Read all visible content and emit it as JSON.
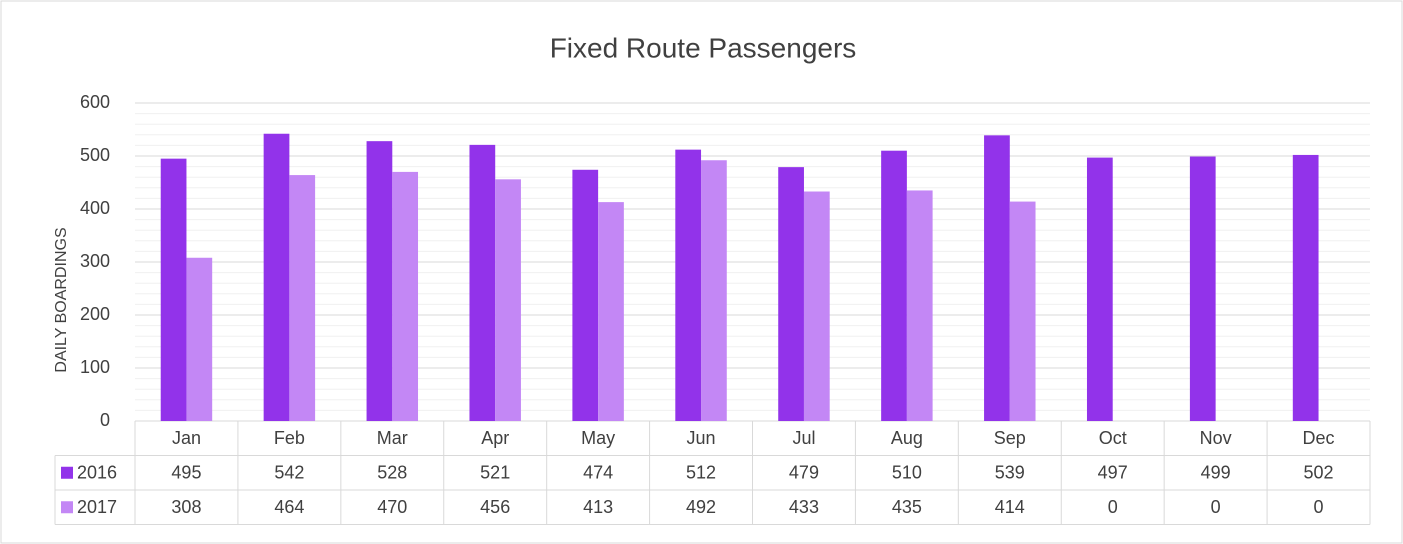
{
  "chart_data": {
    "type": "bar",
    "title": "Fixed Route Passengers",
    "y_label": "DAILY BOARDINGS",
    "categories": [
      "Jan",
      "Feb",
      "Mar",
      "Apr",
      "May",
      "Jun",
      "Jul",
      "Aug",
      "Sep",
      "Oct",
      "Nov",
      "Dec"
    ],
    "series": [
      {
        "name": "2016",
        "color": "#9233ea",
        "values": [
          495,
          542,
          528,
          521,
          474,
          512,
          479,
          510,
          539,
          497,
          499,
          502
        ]
      },
      {
        "name": "2017",
        "color": "#c387f5",
        "values": [
          308,
          464,
          470,
          456,
          413,
          492,
          433,
          435,
          414,
          0,
          0,
          0
        ]
      }
    ],
    "ylim": [
      0,
      600
    ],
    "yticks": [
      0,
      100,
      200,
      300,
      400,
      500,
      600
    ],
    "minor_yticks": [
      20,
      40,
      60,
      80,
      120,
      140,
      160,
      180,
      220,
      240,
      260,
      280,
      320,
      340,
      360,
      380,
      420,
      440,
      460,
      480,
      520,
      540,
      560,
      580
    ],
    "grid": true,
    "data_table": true
  }
}
